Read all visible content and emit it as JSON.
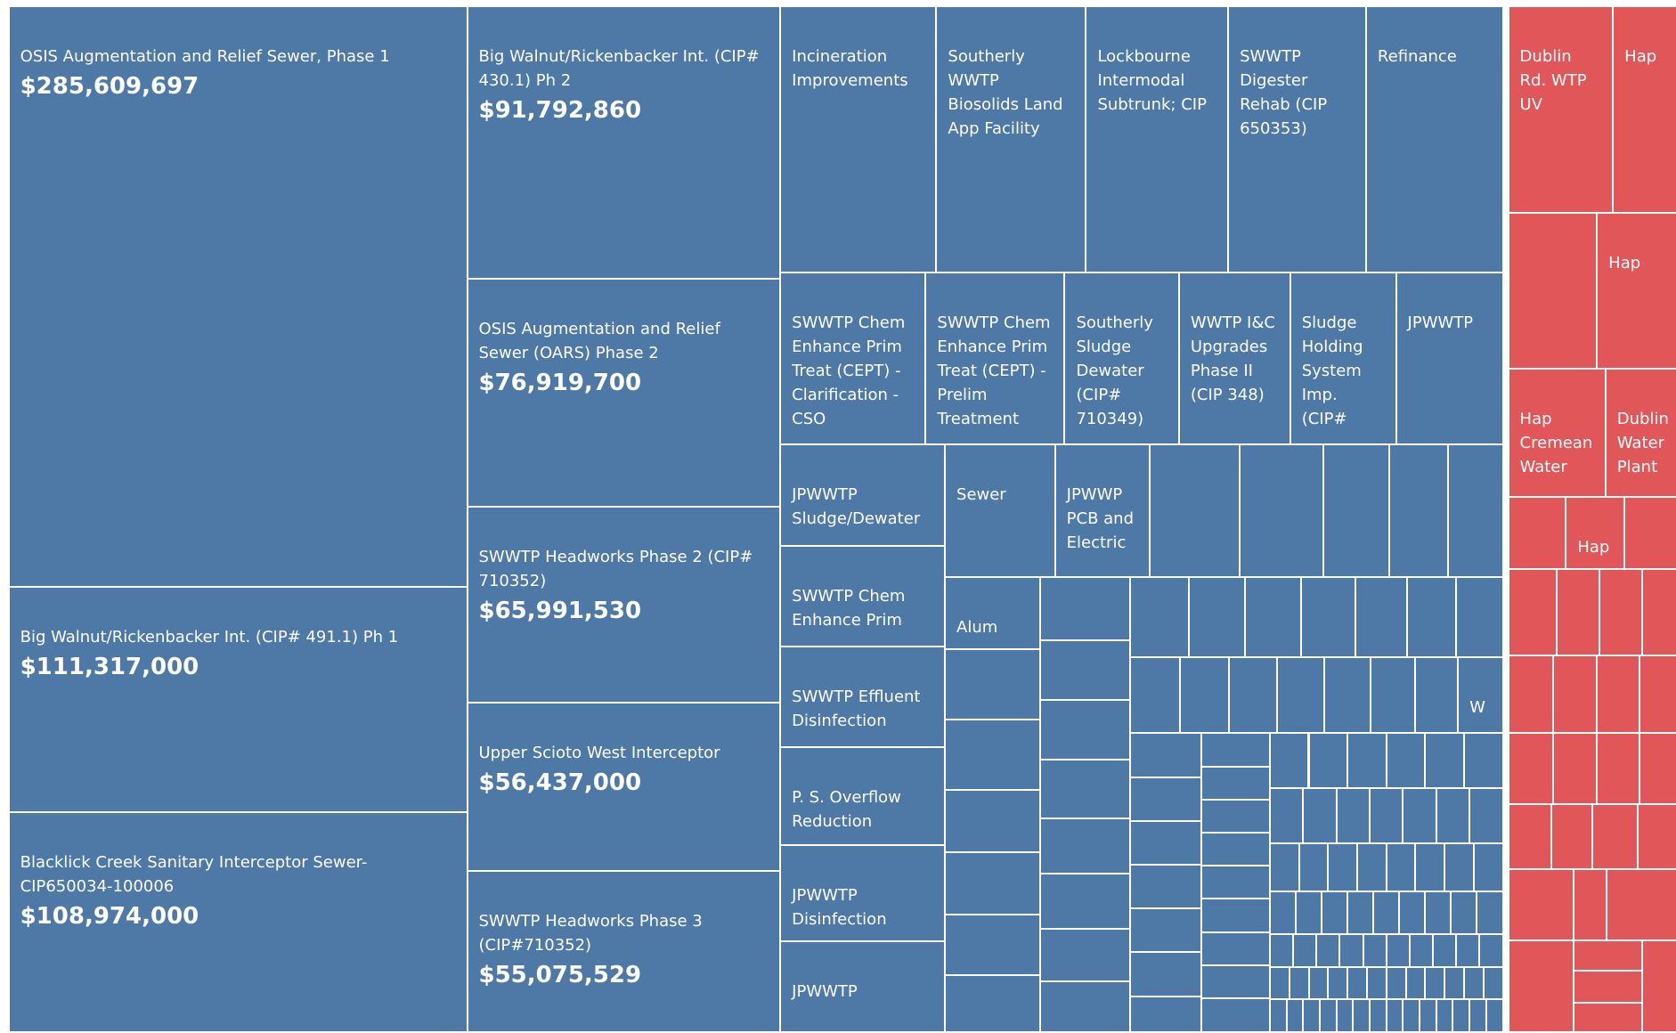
{
  "chart_data": {
    "type": "treemap",
    "series": [
      {
        "color": "#4e79a7",
        "categories": [
          "OSIS Augmentation and Relief Sewer, Phase 1",
          "Big Walnut/Rickenbacker Int. (CIP# 491.1)  Ph 1",
          "Blacklick Creek Sanitary Interceptor Sewer-CIP650034-100006",
          "Big Walnut/Rickenbacker Int. (CIP# 430.1)  Ph 2",
          "OSIS Augmentation and Relief Sewer (OARS) Phase 2",
          "SWWTP Headworks Phase 2 (CIP# 710352)",
          "Upper Scioto West Interceptor",
          "SWWTP Headworks Phase 3 (CIP#710352)",
          "Incineration Improvements",
          "Southerly WWTP Biosolids Land App Facility",
          "Lockbourne Intermodal Subtrunk; CIP",
          "SWWTP Digester Rehab (CIP 650353)",
          "Refinance",
          "SWWTP Chem Enhance Prim Treat (CEPT) - Clarification - CSO",
          "SWWTP Chem Enhance Prim Treat (CEPT) - Prelim Treatment",
          "Southerly Sludge Dewater (CIP# 710349)",
          "WWTP I&C Upgrades Phase II (CIP 348)",
          "Sludge Holding System Imp. (CIP#",
          "JPWWTP",
          "JPWWTP Sludge/Dewater",
          "SWWTP Chem Enhance Prim",
          "SWWTP Effluent Disinfection",
          "P. S. Overflow Reduction",
          "JPWWTP Disinfection",
          "JPWWTP",
          "Sewer",
          "JPWWP PCB and Electric",
          "Alum",
          "W"
        ],
        "values": [
          285609697,
          111317000,
          108974000,
          91792860,
          76919700,
          65991530,
          56437000,
          55075529,
          45000000,
          43000000,
          41000000,
          40000000,
          39700000,
          27000000,
          26000000,
          21000000,
          21000000,
          20000000,
          20000000,
          18000000,
          18000000,
          18000000,
          17600000,
          17000000,
          16000000,
          16000000,
          13700000,
          7400000,
          3700000
        ],
        "value_labels": [
          "$285,609,697",
          "$111,317,000",
          "$108,974,000",
          "$91,792,860",
          "$76,919,700",
          "$65,991,530",
          "$56,437,000",
          "$55,075,529",
          null,
          null,
          null,
          null,
          null,
          null,
          null,
          null,
          null,
          null,
          null,
          null,
          null,
          null,
          null,
          null,
          null,
          null,
          null,
          null,
          null
        ]
      },
      {
        "color": "#e15759",
        "categories": [
          "Dublin Rd. WTP UV",
          "Hap",
          "Hap",
          "Hap Cremean Water",
          "Dublin Water Plant",
          "Hap"
        ],
        "values": [
          23500000,
          14000000,
          13500000,
          13600000,
          9900000,
          4600000
        ]
      }
    ]
  }
}
